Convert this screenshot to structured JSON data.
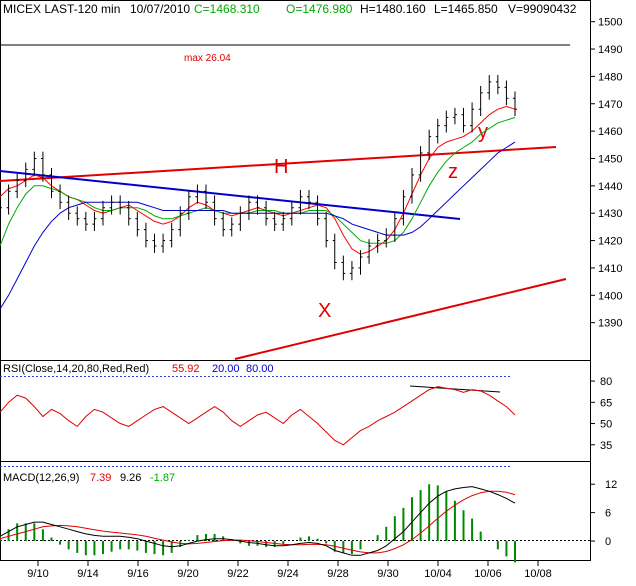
{
  "header": {
    "symbol": "MICEX LAST-120 min",
    "date": "10/07/2010",
    "close": "C=1468.310",
    "open": "O=1476.980",
    "high": "H=1480.160",
    "low": "L=1465.850",
    "volume": "V=99090432"
  },
  "annotations": {
    "max": "max 26.04",
    "H": "H",
    "X": "X",
    "y": "y",
    "z": "z"
  },
  "colors": {
    "price": "#000000",
    "ma_fast": "#ff0000",
    "ma_mid": "#00aa00",
    "ma_slow": "#0000cc",
    "trend_red": "#e00000",
    "trend_blue": "#0000cc",
    "macd_hist": "#008800"
  },
  "chart_data": [
    {
      "type": "line",
      "panel": "price",
      "title": "MICEX LAST-120 min",
      "x_ticks": [
        "9/10",
        "9/14",
        "9/16",
        "9/20",
        "9/22",
        "9/24",
        "9/28",
        "9/30",
        "10/04",
        "10/06",
        "10/08"
      ],
      "y_ticks": [
        1390,
        1400,
        1410,
        1420,
        1430,
        1440,
        1450,
        1460,
        1470,
        1480,
        1490,
        1500
      ],
      "ylim": [
        1380,
        1505
      ],
      "grid": false,
      "series": [
        {
          "key": "ma_fast",
          "values": [
            1436,
            1439,
            1440,
            1442,
            1444,
            1443,
            1440,
            1438,
            1436,
            1435,
            1433,
            1431,
            1430,
            1431,
            1432,
            1433,
            1431,
            1429,
            1427,
            1426,
            1427,
            1429,
            1432,
            1434,
            1433,
            1431,
            1430,
            1429,
            1430,
            1431,
            1432,
            1431,
            1430,
            1429,
            1430,
            1431,
            1432,
            1433,
            1432,
            1428,
            1422,
            1417,
            1415,
            1416,
            1418,
            1420,
            1424,
            1430,
            1437,
            1444,
            1450,
            1454,
            1456,
            1457,
            1458,
            1460,
            1463,
            1466,
            1468,
            1469,
            1468
          ]
        },
        {
          "key": "ma_mid",
          "values": [
            1418,
            1426,
            1432,
            1437,
            1440,
            1440,
            1439,
            1438,
            1436,
            1435,
            1434,
            1432,
            1431,
            1431,
            1432,
            1432,
            1432,
            1431,
            1429,
            1428,
            1428,
            1429,
            1430,
            1431,
            1432,
            1431,
            1430,
            1430,
            1430,
            1430,
            1431,
            1431,
            1431,
            1430,
            1430,
            1430,
            1431,
            1431,
            1431,
            1429,
            1426,
            1423,
            1420,
            1419,
            1419,
            1419,
            1420,
            1423,
            1428,
            1434,
            1440,
            1445,
            1449,
            1452,
            1454,
            1456,
            1459,
            1461,
            1463,
            1464,
            1465
          ]
        },
        {
          "key": "ma_slow",
          "values": [
            1395,
            1400,
            1406,
            1412,
            1418,
            1423,
            1427,
            1430,
            1432,
            1433,
            1434,
            1434,
            1434,
            1434,
            1434,
            1434,
            1434,
            1433,
            1432,
            1431,
            1431,
            1431,
            1431,
            1431,
            1431,
            1431,
            1431,
            1430,
            1430,
            1430,
            1430,
            1430,
            1430,
            1430,
            1430,
            1430,
            1430,
            1430,
            1430,
            1429,
            1428,
            1426,
            1425,
            1424,
            1423,
            1422,
            1422,
            1422,
            1423,
            1425,
            1428,
            1431,
            1434,
            1437,
            1440,
            1443,
            1446,
            1449,
            1452,
            1454,
            1456
          ]
        },
        {
          "key": "price",
          "values": [
            1432,
            1438,
            1442,
            1446,
            1450,
            1444,
            1438,
            1434,
            1430,
            1428,
            1426,
            1428,
            1432,
            1434,
            1432,
            1428,
            1424,
            1420,
            1418,
            1420,
            1424,
            1430,
            1436,
            1438,
            1434,
            1428,
            1424,
            1426,
            1430,
            1434,
            1432,
            1428,
            1426,
            1428,
            1432,
            1436,
            1434,
            1428,
            1420,
            1412,
            1408,
            1410,
            1414,
            1418,
            1420,
            1422,
            1428,
            1436,
            1444,
            1452,
            1458,
            1462,
            1465,
            1466,
            1462,
            1468,
            1474,
            1478,
            1476,
            1472,
            1468
          ]
        }
      ]
    },
    {
      "type": "line",
      "panel": "rsi",
      "title": "RSI(Close,14,20,80,Red,Red)",
      "values_text": [
        "55.92",
        "20.00",
        "80.00"
      ],
      "y_ticks": [
        35,
        50,
        65,
        80
      ],
      "ylim": [
        20,
        85
      ],
      "series": [
        {
          "key": "rsi",
          "values": [
            58,
            65,
            70,
            68,
            62,
            55,
            60,
            57,
            52,
            48,
            55,
            60,
            58,
            54,
            50,
            48,
            52,
            56,
            60,
            62,
            58,
            54,
            50,
            54,
            58,
            62,
            58,
            52,
            48,
            52,
            56,
            58,
            54,
            50,
            56,
            60,
            55,
            50,
            44,
            38,
            35,
            40,
            45,
            48,
            52,
            55,
            58,
            62,
            66,
            70,
            74,
            76,
            75,
            74,
            72,
            74,
            73,
            70,
            66,
            62,
            56
          ]
        }
      ]
    },
    {
      "type": "bar",
      "panel": "macd",
      "title": "MACD(12,26,9)",
      "values_text": [
        "7.39",
        "9.26",
        "-1.87"
      ],
      "y_ticks": [
        0,
        6,
        12
      ],
      "ylim": [
        -4,
        15
      ],
      "series": [
        {
          "key": "macd",
          "values": [
            1,
            2,
            3,
            3.5,
            4,
            4,
            3.5,
            3,
            2.5,
            2,
            1.5,
            1.2,
            1,
            1,
            1,
            0.8,
            0.5,
            0,
            -0.5,
            -1,
            -1.2,
            -1,
            -0.5,
            0,
            0.3,
            0.5,
            0.5,
            0.3,
            0,
            -0.3,
            -0.5,
            -0.8,
            -1,
            -1,
            -0.8,
            -0.5,
            -0.3,
            -0.5,
            -1,
            -2,
            -2.5,
            -3,
            -3,
            -2.5,
            -2,
            -1,
            0.5,
            2,
            4,
            6,
            8,
            9.5,
            10.5,
            11,
            11.3,
            11.5,
            11,
            10.5,
            9.8,
            9,
            8
          ]
        },
        {
          "key": "signal",
          "values": [
            0.5,
            1,
            1.5,
            2,
            2.5,
            3,
            3.2,
            3.3,
            3.2,
            3,
            2.7,
            2.4,
            2.1,
            1.9,
            1.7,
            1.5,
            1.3,
            1,
            0.6,
            0.2,
            -0.2,
            -0.5,
            -0.6,
            -0.5,
            -0.3,
            -0.1,
            0.1,
            0.2,
            0.2,
            0.1,
            -0.1,
            -0.3,
            -0.5,
            -0.7,
            -0.8,
            -0.8,
            -0.7,
            -0.7,
            -0.8,
            -1.1,
            -1.5,
            -1.9,
            -2.3,
            -2.5,
            -2.5,
            -2.2,
            -1.6,
            -0.8,
            0.3,
            1.7,
            3.2,
            4.8,
            6.3,
            7.6,
            8.7,
            9.6,
            10.2,
            10.5,
            10.5,
            10.3,
            9.8
          ]
        }
      ]
    }
  ]
}
